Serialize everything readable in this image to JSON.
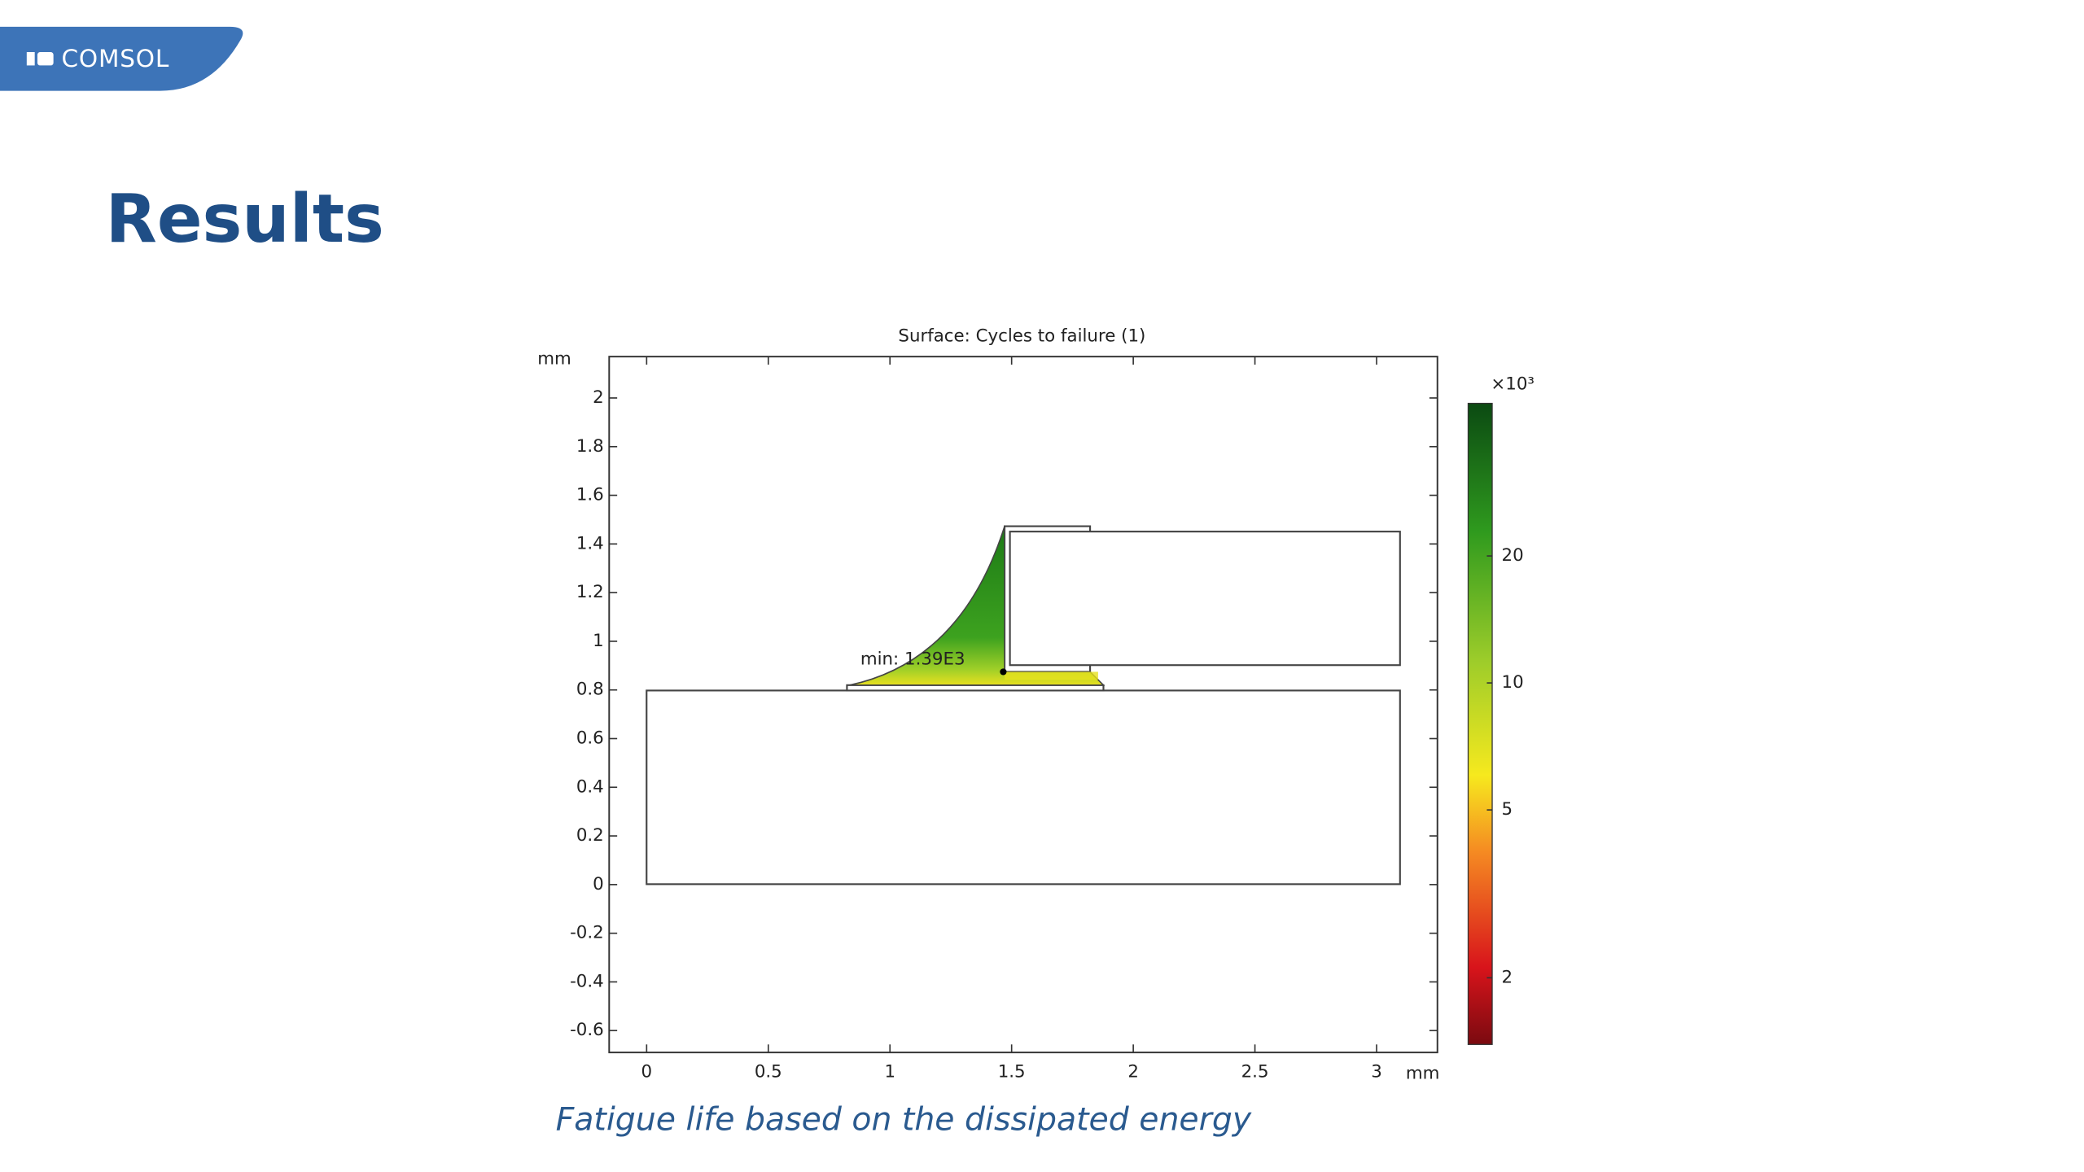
{
  "logo": "COMSOL",
  "title": "Results",
  "caption": "Fatigue life based on the dissipated energy",
  "chart_data": {
    "type": "surface",
    "title": "Surface: Cycles to failure (1)",
    "xlabel": "mm",
    "ylabel": "mm",
    "xlim": [
      -0.154,
      3.25
    ],
    "xticks": [
      0,
      0.5,
      1,
      1.5,
      2,
      2.5,
      3
    ],
    "ylim": [
      -0.69,
      2.17
    ],
    "yticks": [
      -0.6,
      -0.4,
      -0.2,
      0,
      0.2,
      0.4,
      0.6,
      0.8,
      1,
      1.2,
      1.4,
      1.6,
      1.8,
      2
    ],
    "colorbar": {
      "label": "×10³",
      "scale": "log",
      "lim": [
        1.39,
        46
      ],
      "ticks": [
        2,
        5,
        10,
        20
      ]
    },
    "annotation": "min: 1.39E3"
  }
}
